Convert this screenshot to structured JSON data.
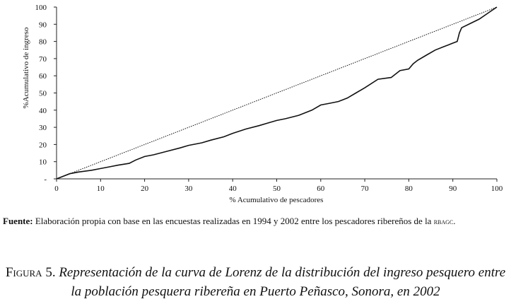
{
  "chart_data": {
    "type": "line",
    "xlabel": "% Acumulativo de pescadores",
    "ylabel": "%Acumulativo de ingreso",
    "xlim": [
      0,
      100
    ],
    "ylim": [
      0,
      100
    ],
    "x_ticks": [
      "0",
      "10",
      "20",
      "30",
      "40",
      "50",
      "60",
      "70",
      "80",
      "90",
      "100"
    ],
    "y_ticks": [
      "-",
      "10",
      "20",
      "30",
      "40",
      "50",
      "60",
      "70",
      "80",
      "90",
      "100"
    ],
    "grid": false,
    "series": [
      {
        "style": "dotted",
        "x": [
          0,
          100
        ],
        "y": [
          0,
          100
        ]
      },
      {
        "style": "solid",
        "x": [
          0,
          3,
          5,
          8,
          10,
          12,
          14,
          16.5,
          18,
          20,
          22,
          25,
          28,
          30,
          33,
          35,
          38,
          40,
          43,
          46,
          48,
          50,
          52,
          55,
          58,
          60,
          62,
          64,
          66,
          68,
          70,
          73,
          76,
          78,
          80,
          81,
          82,
          84,
          86,
          88,
          89,
          90,
          91,
          91.5,
          92,
          94,
          96,
          98,
          100
        ],
        "y": [
          0,
          3,
          4,
          5,
          6,
          7,
          8,
          9,
          11,
          13,
          14,
          16,
          18,
          19.5,
          21,
          22.5,
          24.5,
          26.5,
          29,
          31,
          32.5,
          34,
          35,
          37,
          40,
          43,
          44,
          45,
          47,
          50,
          53,
          58,
          59,
          63,
          64,
          67,
          69,
          72,
          75,
          77,
          78,
          79,
          80,
          85,
          88,
          90.5,
          93,
          96.5,
          100
        ]
      }
    ]
  },
  "source_note": {
    "label": "Fuente:",
    "text": "Elaboración propia con base en las encuestas realizadas en 1994 y 2002 entre los pescadores ribereños de la",
    "acronym": "rbagc",
    "end": "."
  },
  "caption": {
    "figure_label": "Figura 5.",
    "description": "Representación de la curva de Lorenz de la distribución del ingreso pesquero entre la población pesquera ribereña en Puerto Peñasco, Sonora, en 2002"
  }
}
